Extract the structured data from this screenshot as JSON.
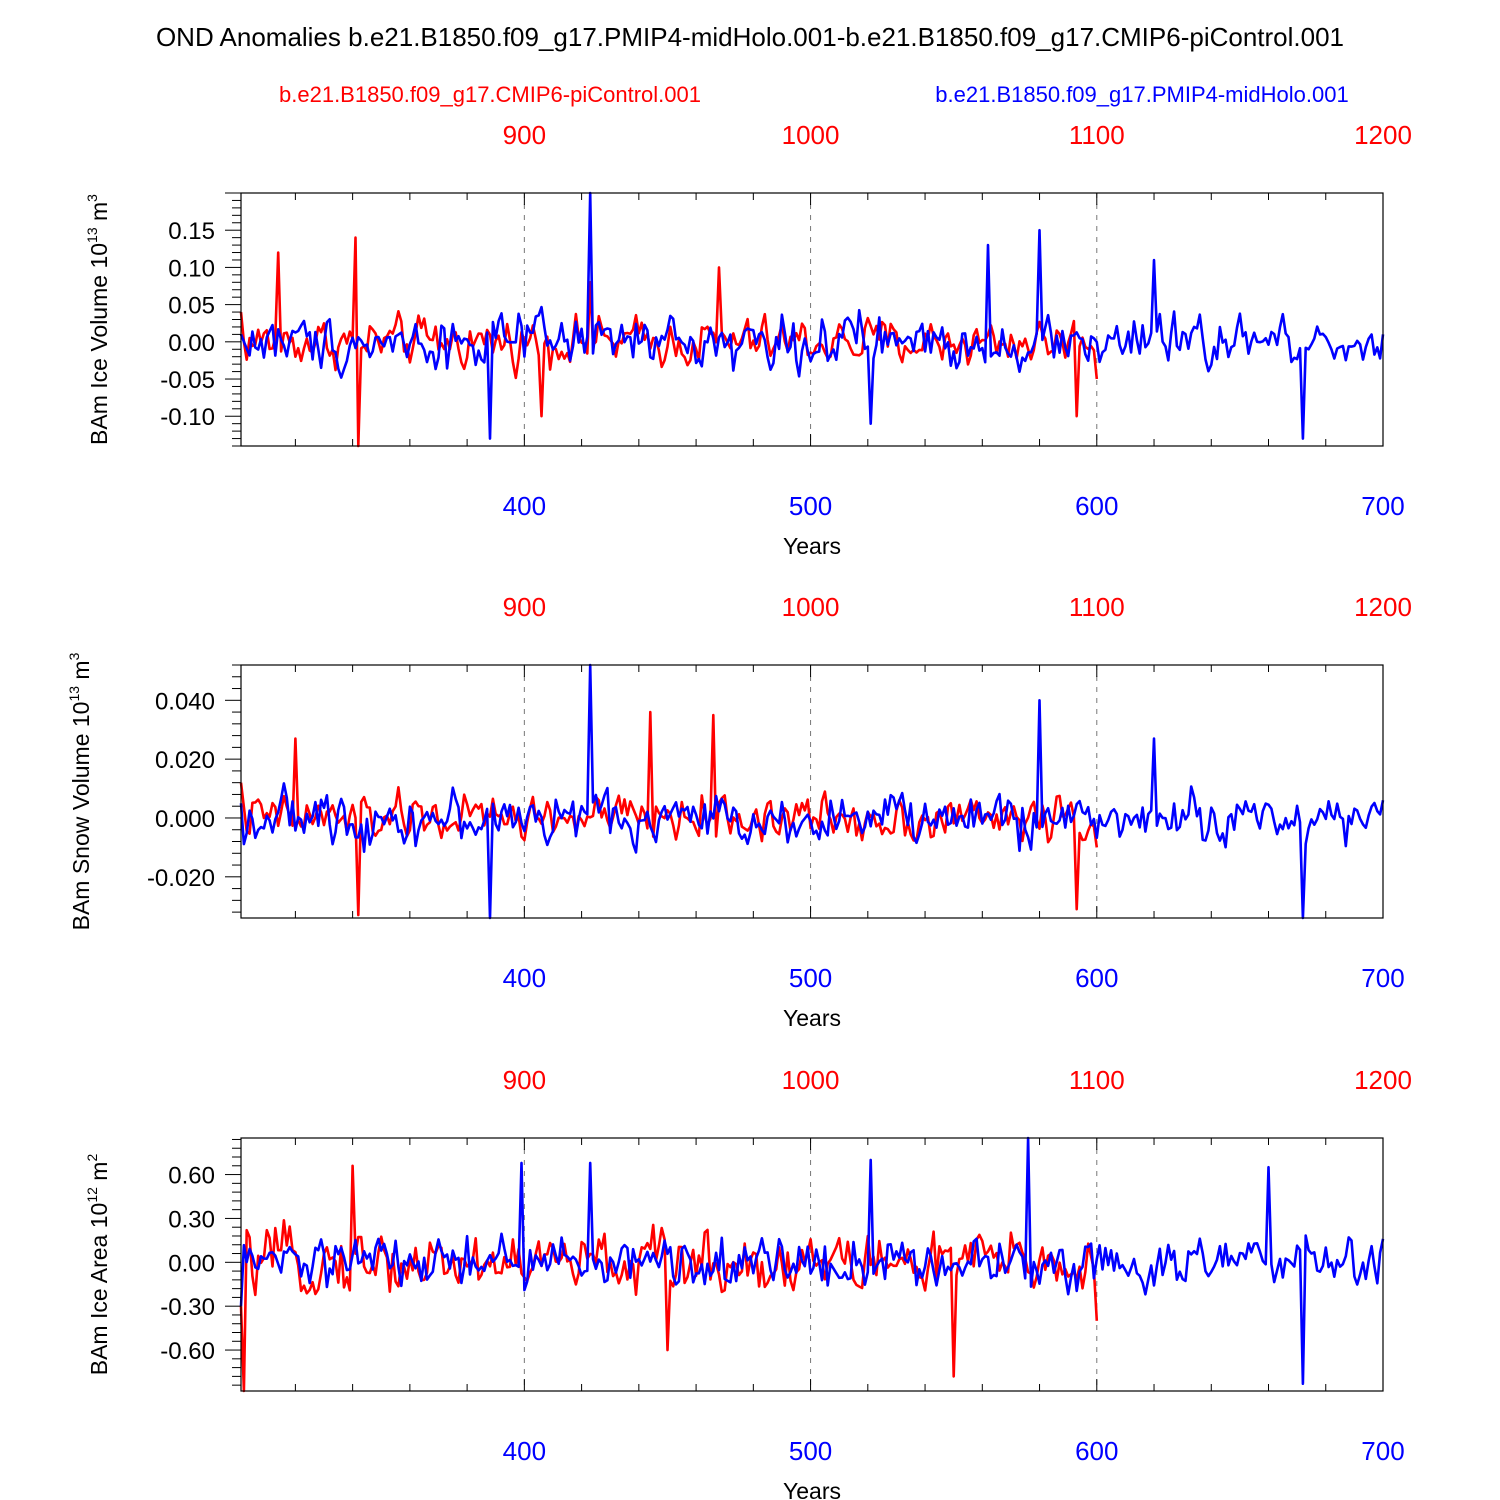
{
  "figure": {
    "title": "OND Anomalies b.e21.B1850.f09_g17.PMIP4-midHolo.001-b.e21.B1850.f09_g17.CMIP6-piControl.001",
    "legend": [
      {
        "label": "b.e21.B1850.f09_g17.CMIP6-piControl.001",
        "color": "#ff0000"
      },
      {
        "label": "b.e21.B1850.f09_g17.PMIP4-midHolo.001",
        "color": "#0000ff"
      }
    ],
    "colors": {
      "control": "#ff0000",
      "midholo": "#0000ff",
      "axis": "#000000",
      "grid": "#777777"
    }
  },
  "chart_data": [
    {
      "type": "line",
      "ylabel_main": "BAm Ice Volume 10",
      "ylabel_exp": "13",
      "ylabel_unit": " m",
      "ylabel_unit_exp": "3",
      "xlabel": "Years",
      "xlim_bottom": [
        301,
        700
      ],
      "xlim_top": [
        801,
        1200
      ],
      "ylim": [
        -0.14,
        0.2
      ],
      "yticks": [
        -0.1,
        -0.05,
        0.0,
        0.05,
        0.1,
        0.15
      ],
      "ytick_labels": [
        "-0.10",
        "-0.05",
        "0.00",
        "0.05",
        "0.10",
        "0.15"
      ],
      "xticks_bottom": [
        400,
        500,
        600,
        700
      ],
      "xticks_top": [
        900,
        1000,
        1100,
        1200
      ],
      "grid": "dashed vertical at 400, 500, 600",
      "series": [
        {
          "name": "b.e21.B1850.f09_g17.CMIP6-piControl.001",
          "axis": "top",
          "x_start": 801,
          "x_end": 1100,
          "amplitude": 0.045,
          "key_points": [
            [
              801,
              0.04
            ],
            [
              814,
              0.12
            ],
            [
              842,
              -0.14
            ],
            [
              841,
              0.14
            ],
            [
              906,
              -0.1
            ],
            [
              923,
              0.08
            ],
            [
              968,
              0.1
            ],
            [
              1093,
              -0.1
            ],
            [
              1100,
              -0.05
            ]
          ]
        },
        {
          "name": "b.e21.B1850.f09_g17.PMIP4-midHolo.001",
          "axis": "bottom",
          "x_start": 301,
          "x_end": 700,
          "amplitude": 0.05,
          "key_points": [
            [
              301,
              0.01
            ],
            [
              388,
              -0.13
            ],
            [
              423,
              0.2
            ],
            [
              521,
              -0.11
            ],
            [
              562,
              0.13
            ],
            [
              580,
              0.15
            ],
            [
              620,
              0.11
            ],
            [
              672,
              -0.13
            ],
            [
              700,
              0.01
            ]
          ]
        }
      ]
    },
    {
      "type": "line",
      "ylabel_main": "BAm Snow Volume 10",
      "ylabel_exp": "13",
      "ylabel_unit": " m",
      "ylabel_unit_exp": "3",
      "xlabel": "Years",
      "xlim_bottom": [
        301,
        700
      ],
      "xlim_top": [
        801,
        1200
      ],
      "ylim": [
        -0.034,
        0.052
      ],
      "yticks": [
        -0.02,
        0.0,
        0.02,
        0.04
      ],
      "ytick_labels": [
        "-0.020",
        "0.000",
        "0.020",
        "0.040"
      ],
      "xticks_bottom": [
        400,
        500,
        600,
        700
      ],
      "xticks_top": [
        900,
        1000,
        1100,
        1200
      ],
      "grid": "dashed vertical at 400, 500, 600",
      "series": [
        {
          "name": "b.e21.B1850.f09_g17.CMIP6-piControl.001",
          "axis": "top",
          "x_start": 801,
          "x_end": 1100,
          "amplitude": 0.011,
          "key_points": [
            [
              801,
              0.012
            ],
            [
              820,
              0.027
            ],
            [
              842,
              -0.033
            ],
            [
              944,
              0.036
            ],
            [
              966,
              0.035
            ],
            [
              1093,
              -0.031
            ],
            [
              1100,
              -0.01
            ]
          ]
        },
        {
          "name": "b.e21.B1850.f09_g17.PMIP4-midHolo.001",
          "axis": "bottom",
          "x_start": 301,
          "x_end": 700,
          "amplitude": 0.012,
          "key_points": [
            [
              301,
              0.005
            ],
            [
              388,
              -0.034
            ],
            [
              423,
              0.052
            ],
            [
              580,
              0.04
            ],
            [
              620,
              0.027
            ],
            [
              672,
              -0.034
            ],
            [
              700,
              0.006
            ]
          ]
        }
      ]
    },
    {
      "type": "line",
      "ylabel_main": "BAm Ice Area 10",
      "ylabel_exp": "12",
      "ylabel_unit": " m",
      "ylabel_unit_exp": "2",
      "xlabel": "Years",
      "xlim_bottom": [
        301,
        700
      ],
      "xlim_top": [
        801,
        1200
      ],
      "ylim": [
        -0.88,
        0.85
      ],
      "yticks": [
        -0.6,
        -0.3,
        0.0,
        0.3,
        0.6
      ],
      "ytick_labels": [
        "-0.60",
        "-0.30",
        "0.00",
        "0.30",
        "0.60"
      ],
      "xticks_bottom": [
        400,
        500,
        600,
        700
      ],
      "xticks_top": [
        900,
        1000,
        1100,
        1200
      ],
      "grid": "dashed vertical at 400, 500, 600",
      "series": [
        {
          "name": "b.e21.B1850.f09_g17.CMIP6-piControl.001",
          "axis": "top",
          "x_start": 801,
          "x_end": 1100,
          "amplitude": 0.3,
          "key_points": [
            [
              801,
              -0.3
            ],
            [
              802,
              -0.88
            ],
            [
              840,
              0.66
            ],
            [
              950,
              -0.6
            ],
            [
              1050,
              -0.78
            ],
            [
              1100,
              -0.4
            ]
          ]
        },
        {
          "name": "b.e21.B1850.f09_g17.PMIP4-midHolo.001",
          "axis": "bottom",
          "x_start": 301,
          "x_end": 700,
          "amplitude": 0.25,
          "key_points": [
            [
              301,
              -0.3
            ],
            [
              399,
              0.68
            ],
            [
              423,
              0.68
            ],
            [
              521,
              0.7
            ],
            [
              576,
              0.85
            ],
            [
              660,
              0.65
            ],
            [
              672,
              -0.83
            ],
            [
              700,
              0.16
            ]
          ]
        }
      ]
    }
  ]
}
